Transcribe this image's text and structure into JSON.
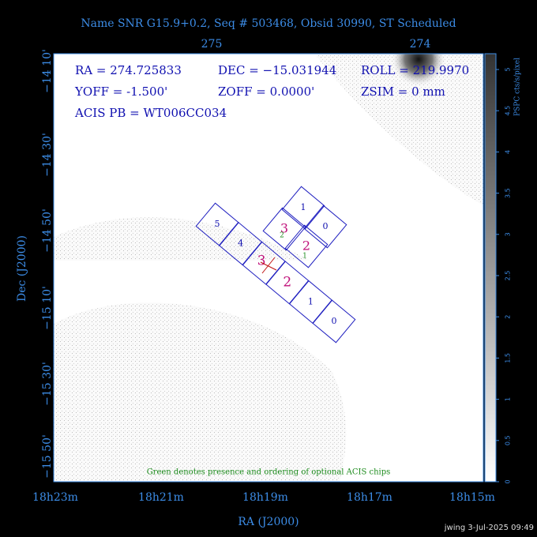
{
  "title": "Name SNR G15.9+0.2, Seq # 503468, Obsid 30990, ST Scheduled",
  "top_axis": {
    "ticks": [
      "275",
      "274"
    ]
  },
  "left_axis": {
    "label": "Dec (J2000)",
    "ticks": [
      "−14 10'",
      "−14 30'",
      "−14 50'",
      "−15 10'",
      "−15 30'",
      "−15 50'"
    ]
  },
  "bottom_axis": {
    "label": "RA (J2000)",
    "ticks": [
      "18h23m",
      "18h21m",
      "18h19m",
      "18h17m",
      "18h15m"
    ]
  },
  "colorbar": {
    "label": "PSPC cts/s/pixel",
    "ticks": [
      "0",
      "0.5",
      "1",
      "1.5",
      "2",
      "2.5",
      "3",
      "3.5",
      "4",
      "4.5",
      "5"
    ]
  },
  "info": [
    "RA = 274.725833",
    "DEC = −15.031944",
    "ROLL = 219.9970",
    "YOFF =  -1.500'",
    "ZOFF =  0.0000'",
    "ZSIM = 0 mm",
    "ACIS PB = WT006CC034"
  ],
  "chips": {
    "s_array": [
      "5",
      "4",
      "3",
      "2",
      "1",
      "0"
    ],
    "i_array": [
      "1",
      "0",
      "3",
      "2"
    ],
    "optional": [
      "2",
      "1"
    ]
  },
  "note": "Green denotes presence and ordering of optional ACIS chips",
  "footer": "jwing   3-Jul-2025 09:49"
}
